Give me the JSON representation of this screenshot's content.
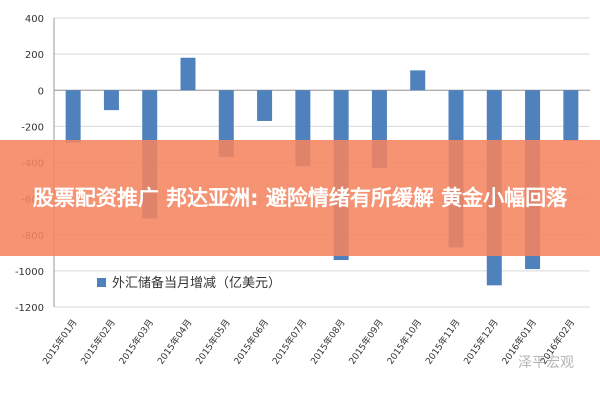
{
  "banner": {
    "title": "股票配资推广 邦达亚洲: 避险情绪有所缓解 黄金小幅回落"
  },
  "watermark": "泽平宏观",
  "chart_data": {
    "type": "bar",
    "categories": [
      "2015年01月",
      "2015年02月",
      "2015年03月",
      "2015年04月",
      "2015年05月",
      "2015年06月",
      "2015年07月",
      "2015年08月",
      "2015年09月",
      "2015年10月",
      "2015年11月",
      "2015年12月",
      "2016年01月",
      "2016年02月"
    ],
    "series": [
      {
        "name": "外汇储备当月增减（亿美元）",
        "values": [
          -290,
          -110,
          -710,
          180,
          -370,
          -170,
          -420,
          -940,
          -430,
          110,
          -870,
          -1080,
          -990,
          -280
        ],
        "color": "#4f81bd"
      }
    ],
    "ylim": [
      -1200,
      400
    ],
    "yticks": [
      400,
      200,
      0,
      -200,
      -400,
      -600,
      -800,
      -1000,
      -1200
    ],
    "ytick_labels": [
      "400",
      "200",
      "0",
      "-200",
      "-400",
      "-600",
      "-800",
      "-1000",
      "-1200"
    ],
    "grid": true,
    "legend": "bottom-left"
  }
}
